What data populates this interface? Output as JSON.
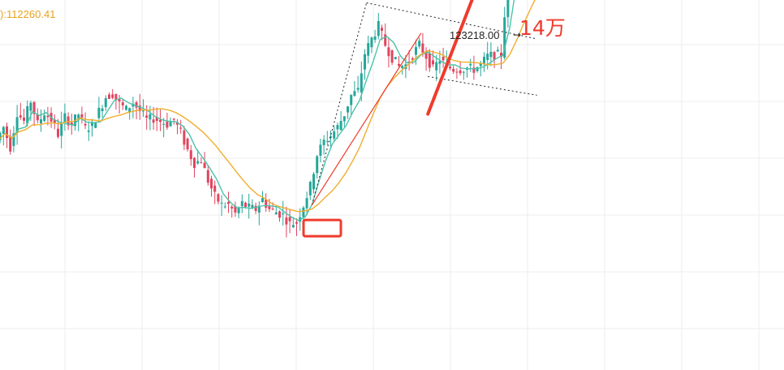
{
  "colors": {
    "up": "#26a69a",
    "down": "#e0455f",
    "ma_fast": "#4cc3a9",
    "ma_slow": "#f1ad2b",
    "price_line": "#2a7bd6",
    "dashed_line": "#3bbfa6",
    "annotation": "#ef3b2c",
    "grid": "#eeeeee"
  },
  "header": {
    "ma_readout": "):112260.41"
  },
  "annotations": {
    "target_label": "14万",
    "high_marker_label": "123218.00",
    "high_marker_arrow": "→"
  },
  "chart_data": {
    "type": "candlestick",
    "title": "",
    "y_axis_visible": false,
    "grid": true,
    "series": [
      {
        "name": "",
        "kind": "price-path",
        "values": [
          106800,
          107700,
          106300,
          108700,
          108100,
          109500,
          107900,
          108700,
          108200,
          107200,
          108400,
          107900,
          108600,
          107600,
          107800,
          108800,
          109800,
          110000,
          109300,
          108900,
          109400,
          108800,
          108200,
          108300,
          108100,
          107900,
          108200,
          107300,
          106100,
          105200,
          105400,
          104000,
          102900,
          102300,
          102300,
          101700,
          102400,
          102100,
          102000,
          102700,
          102000,
          101800,
          101600,
          101000,
          101100,
          102300,
          103600,
          105800,
          106700,
          107100,
          107700,
          108600,
          109900,
          110200,
          112800,
          113800,
          114700,
          113400,
          112500,
          111900,
          112000,
          112700,
          113400,
          112600,
          111700,
          112400,
          111900,
          111700,
          111700,
          111800,
          111700,
          112000,
          112600,
          112700,
          112700,
          118300,
          121700,
          122800,
          121900,
          121600
        ]
      },
      {
        "name": "",
        "kind": "ma-fast"
      },
      {
        "name": "",
        "kind": "ma-slow"
      }
    ],
    "reference_lines": [
      {
        "kind": "solid",
        "value": 120800
      },
      {
        "kind": "dashed",
        "value": 121700
      }
    ],
    "highlight_box": {
      "from_index": 45,
      "to_index": 50,
      "around_low": 100700
    },
    "upper_channel_line": {
      "from": [
        54,
        116300
      ],
      "to": [
        79,
        113800
      ]
    },
    "lower_channel_line": {
      "from": [
        63,
        111200
      ],
      "to": [
        79,
        109900
      ]
    },
    "flag_pole_line": {
      "from": [
        46,
        102300
      ],
      "to": [
        62,
        114200
      ]
    },
    "projection_arrow": {
      "from": [
        63,
        108600
      ],
      "to": [
        78,
        126900
      ]
    },
    "high_marker_value": 123218.0
  }
}
